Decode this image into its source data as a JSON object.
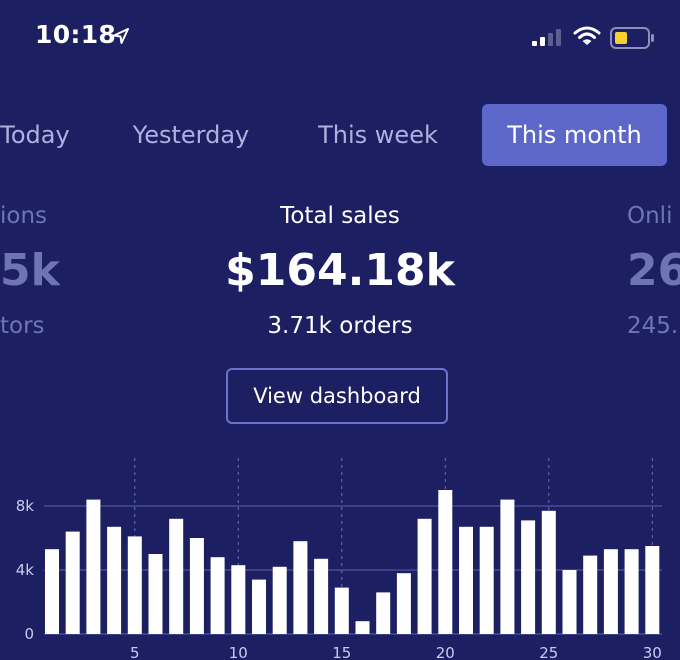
{
  "status_bar": {
    "time": "10:18",
    "location_icon": "location-arrow-icon",
    "signal_icon": "cellular-signal-icon",
    "wifi_icon": "wifi-icon",
    "battery_icon": "battery-low-icon",
    "battery_color": "#f5d22b"
  },
  "tabs": [
    {
      "label": "Today",
      "active": false
    },
    {
      "label": "Yesterday",
      "active": false
    },
    {
      "label": "This week",
      "active": false
    },
    {
      "label": "This month",
      "active": true
    }
  ],
  "stats": {
    "left": {
      "label": "ions",
      "value": "5k",
      "sub": "tors"
    },
    "center": {
      "label": "Total sales",
      "value": "$164.18k",
      "sub": "3.71k orders"
    },
    "right": {
      "label": "Onli",
      "value": "26",
      "sub": "245."
    }
  },
  "dashboard_button": "View dashboard",
  "colors": {
    "background": "#1c2062",
    "accent": "#5d66c9",
    "bar": "#ffffff"
  },
  "chart_data": {
    "type": "bar",
    "x": [
      1,
      2,
      3,
      4,
      5,
      6,
      7,
      8,
      9,
      10,
      11,
      12,
      13,
      14,
      15,
      16,
      17,
      18,
      19,
      20,
      21,
      22,
      23,
      24,
      25,
      26,
      27,
      28,
      29,
      30
    ],
    "values": [
      5.3,
      6.4,
      8.4,
      6.7,
      6.1,
      5.0,
      7.2,
      6.0,
      4.8,
      4.3,
      3.4,
      4.2,
      5.8,
      4.7,
      2.9,
      0.8,
      2.6,
      3.8,
      7.2,
      9.0,
      6.7,
      6.7,
      8.4,
      7.1,
      7.7,
      4.0,
      4.9,
      5.3,
      5.3,
      5.5
    ],
    "xticks": [
      "5",
      "10",
      "15",
      "20",
      "25",
      "30"
    ],
    "xtick_values": [
      5,
      10,
      15,
      20,
      25,
      30
    ],
    "yticks": [
      "0",
      "4k",
      "8k"
    ],
    "ytick_values": [
      0,
      4,
      8
    ],
    "ylim": [
      0,
      10.8
    ],
    "grid": true
  }
}
